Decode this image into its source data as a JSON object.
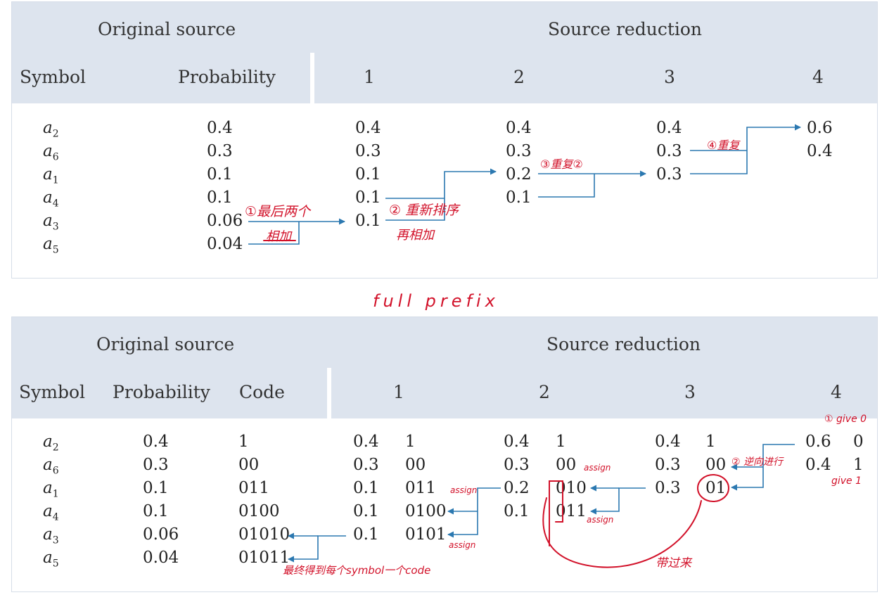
{
  "table1": {
    "header": {
      "original_source": "Original source",
      "source_reduction": "Source reduction"
    },
    "columns": {
      "symbol": "Symbol",
      "probability": "Probability",
      "r1": "1",
      "r2": "2",
      "r3": "3",
      "r4": "4"
    },
    "rows": [
      {
        "sym": "a",
        "sub": "2",
        "prob": "0.4",
        "r1": "0.4",
        "r2": "0.4",
        "r3": "0.4",
        "r4": "0.6"
      },
      {
        "sym": "a",
        "sub": "6",
        "prob": "0.3",
        "r1": "0.3",
        "r2": "0.3",
        "r3": "0.3",
        "r4": "0.4"
      },
      {
        "sym": "a",
        "sub": "1",
        "prob": "0.1",
        "r1": "0.1",
        "r2": "0.2",
        "r3": "0.3"
      },
      {
        "sym": "a",
        "sub": "4",
        "prob": "0.1",
        "r1": "0.1",
        "r2": "0.1"
      },
      {
        "sym": "a",
        "sub": "3",
        "prob": "0.06",
        "r1": "0.1"
      },
      {
        "sym": "a",
        "sub": "5",
        "prob": "0.04"
      }
    ],
    "annotations": {
      "step1_line1": "①最后两个",
      "step1_line2": "相加",
      "step2_line1": "② 重新排序",
      "step2_line2": "再相加",
      "step3": "③重复②",
      "step4": "④重复"
    }
  },
  "between_note": "full prefix",
  "table2": {
    "header": {
      "original_source": "Original source",
      "source_reduction": "Source reduction"
    },
    "columns": {
      "symbol": "Symbol",
      "probability": "Probability",
      "code": "Code",
      "r1": "1",
      "r2": "2",
      "r3": "3",
      "r4": "4"
    },
    "rows": [
      {
        "sym": "a",
        "sub": "2",
        "prob": "0.4",
        "code": "1",
        "r1p": "0.4",
        "r1c": "1",
        "r2p": "0.4",
        "r2c": "1",
        "r3p": "0.4",
        "r3c": "1",
        "r4p": "0.6",
        "r4c": "0"
      },
      {
        "sym": "a",
        "sub": "6",
        "prob": "0.3",
        "code": "00",
        "r1p": "0.3",
        "r1c": "00",
        "r2p": "0.3",
        "r2c": "00",
        "r3p": "0.3",
        "r3c": "00",
        "r4p": "0.4",
        "r4c": "1"
      },
      {
        "sym": "a",
        "sub": "1",
        "prob": "0.1",
        "code": "011",
        "r1p": "0.1",
        "r1c": "011",
        "r2p": "0.2",
        "r2c": "010",
        "r3p": "0.3",
        "r3c": "01"
      },
      {
        "sym": "a",
        "sub": "4",
        "prob": "0.1",
        "code": "0100",
        "r1p": "0.1",
        "r1c": "0100",
        "r2p": "0.1",
        "r2c": "011"
      },
      {
        "sym": "a",
        "sub": "3",
        "prob": "0.06",
        "code": "01010",
        "r1p": "0.1",
        "r1c": "0101"
      },
      {
        "sym": "a",
        "sub": "5",
        "prob": "0.04",
        "code": "01011"
      }
    ],
    "annotations": {
      "give0": "① give 0",
      "give1": "give 1",
      "reverse": "② 逆向进行",
      "assign_a": "assign",
      "assign_b": "assign",
      "assign_c": "assign",
      "assign_d": "assign",
      "carried": "带过来",
      "final": "最终得到每个symbol一个code"
    }
  },
  "colors": {
    "header_band": "#dde4ee",
    "arrow": "#2b78b0",
    "ink": "#d2122a"
  }
}
